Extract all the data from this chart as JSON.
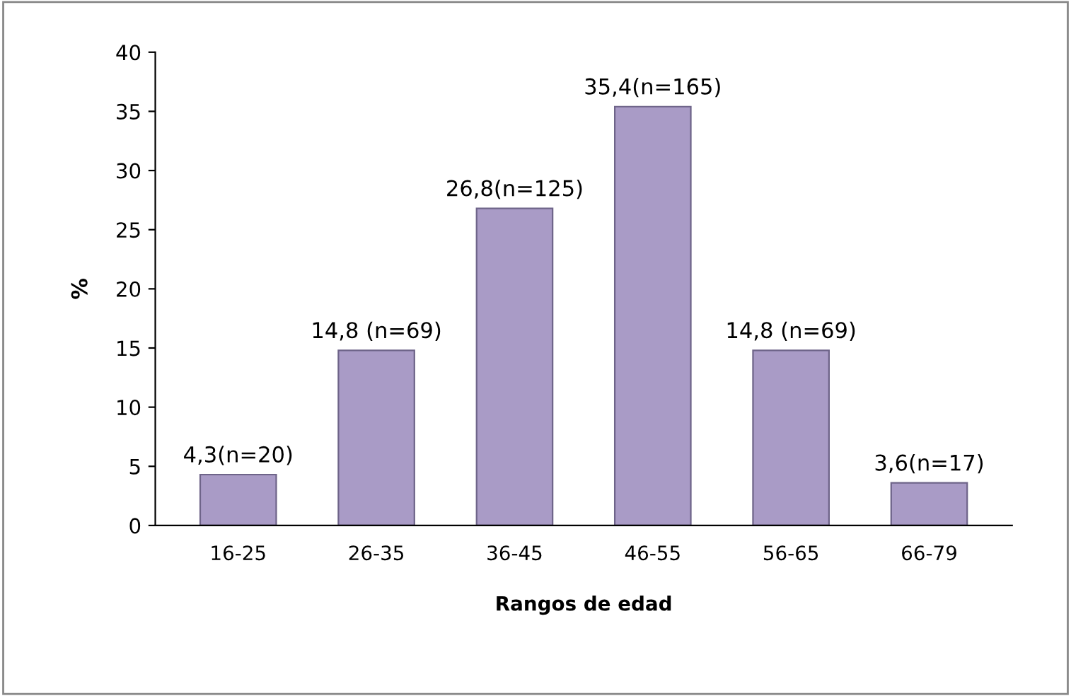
{
  "chart_data": {
    "type": "bar",
    "xlabel": "Rangos de edad",
    "ylabel": "%",
    "categories": [
      "16-25",
      "26-35",
      "36-45",
      "46-55",
      "56-65",
      "66-79"
    ],
    "values": [
      4.3,
      14.8,
      26.8,
      35.4,
      14.8,
      3.6
    ],
    "value_labels": [
      "4,3(n=20)",
      "14,8 (n=69)",
      "26,8(n=125)",
      "35,4(n=165)",
      "14,8 (n=69)",
      "3,6(n=17)"
    ],
    "color": "#a99bc6",
    "ylim": [
      0,
      40
    ],
    "yticks": [
      0,
      5,
      10,
      15,
      20,
      25,
      30,
      35,
      40
    ],
    "grid": false,
    "legend": false
  }
}
